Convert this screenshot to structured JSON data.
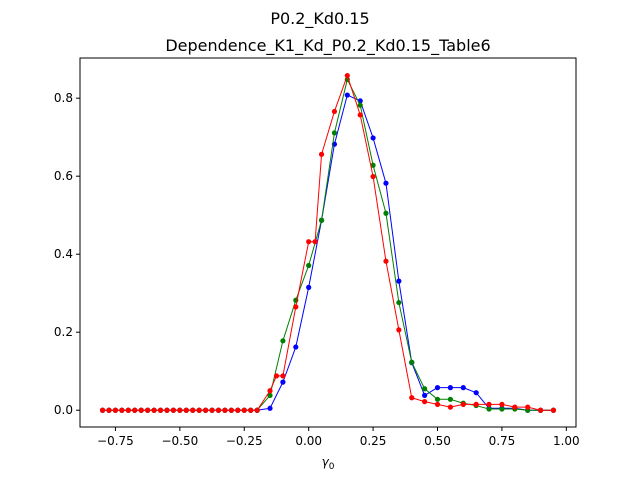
{
  "figure": {
    "suptitle": "P0.2_Kd0.15"
  },
  "chart_data": {
    "type": "line",
    "title": "Dependence_K1_Kd_P0.2_Kd0.15_Table6",
    "xlabel": "γ",
    "xlabel_subscript": "0",
    "ylabel": "",
    "xlim": [
      -0.8875,
      1.0375
    ],
    "ylim": [
      -0.043,
      0.903
    ],
    "x_ticks": [
      -0.75,
      -0.5,
      -0.25,
      0.0,
      0.25,
      0.5,
      0.75,
      1.0
    ],
    "x_tick_labels": [
      "−0.75",
      "−0.50",
      "−0.25",
      "0.00",
      "0.25",
      "0.50",
      "0.75",
      "1.00"
    ],
    "y_ticks": [
      0.0,
      0.2,
      0.4,
      0.6,
      0.8
    ],
    "y_tick_labels": [
      "0.0",
      "0.2",
      "0.4",
      "0.6",
      "0.8"
    ],
    "grid": false,
    "x": [
      -0.8,
      -0.775,
      -0.75,
      -0.725,
      -0.7,
      -0.675,
      -0.65,
      -0.625,
      -0.6,
      -0.575,
      -0.55,
      -0.525,
      -0.5,
      -0.475,
      -0.45,
      -0.425,
      -0.4,
      -0.375,
      -0.35,
      -0.325,
      -0.3,
      -0.275,
      -0.25,
      -0.225,
      -0.2,
      -0.175,
      -0.15,
      -0.125,
      -0.1,
      -0.075,
      -0.05,
      -0.025,
      0.0,
      0.025,
      0.05,
      0.075,
      0.1,
      0.125,
      0.15,
      0.175,
      0.2,
      0.225,
      0.25,
      0.275,
      0.3,
      0.325,
      0.35,
      0.375,
      0.4,
      0.425,
      0.45,
      0.475,
      0.5,
      0.525,
      0.55,
      0.575,
      0.6,
      0.625,
      0.65,
      0.675,
      0.7,
      0.725,
      0.75,
      0.775,
      0.8,
      0.825,
      0.85,
      0.875,
      0.9,
      0.925,
      0.95
    ],
    "series": [
      {
        "color": "#0000ff",
        "x": [
          -0.8,
          -0.775,
          -0.75,
          -0.725,
          -0.7,
          -0.675,
          -0.65,
          -0.625,
          -0.6,
          -0.575,
          -0.55,
          -0.525,
          -0.5,
          -0.475,
          -0.45,
          -0.425,
          -0.4,
          -0.375,
          -0.35,
          -0.325,
          -0.3,
          -0.275,
          -0.25,
          -0.225,
          -0.2,
          -0.15,
          -0.1,
          -0.05,
          0.0,
          0.05,
          0.1,
          0.15,
          0.2,
          0.25,
          0.3,
          0.35,
          0.4,
          0.45,
          0.5,
          0.55,
          0.6,
          0.65,
          0.7,
          0.75,
          0.8,
          0.85,
          0.9,
          0.95
        ],
        "values": [
          0,
          0,
          0,
          0,
          0,
          0,
          0,
          0,
          0,
          0,
          0,
          0,
          0,
          0,
          0,
          0,
          0,
          0,
          0,
          0,
          0,
          0,
          0,
          0,
          0,
          0.005,
          0.072,
          0.162,
          0.315,
          0.487,
          0.682,
          0.808,
          0.793,
          0.698,
          0.582,
          0.331,
          0.122,
          0.038,
          0.058,
          0.058,
          0.058,
          0.045,
          0.005,
          0.005,
          0.005,
          0.0,
          0.0,
          0.0
        ]
      },
      {
        "color": "#008000",
        "x": [
          -0.8,
          -0.775,
          -0.75,
          -0.725,
          -0.7,
          -0.675,
          -0.65,
          -0.625,
          -0.6,
          -0.575,
          -0.55,
          -0.525,
          -0.5,
          -0.475,
          -0.45,
          -0.425,
          -0.4,
          -0.375,
          -0.35,
          -0.325,
          -0.3,
          -0.275,
          -0.25,
          -0.225,
          -0.2,
          -0.15,
          -0.1,
          -0.05,
          0.0,
          0.05,
          0.1,
          0.15,
          0.2,
          0.25,
          0.3,
          0.35,
          0.4,
          0.45,
          0.5,
          0.55,
          0.6,
          0.65,
          0.7,
          0.75,
          0.8,
          0.85,
          0.9,
          0.95
        ],
        "values": [
          0,
          0,
          0,
          0,
          0,
          0,
          0,
          0,
          0,
          0,
          0,
          0,
          0,
          0,
          0,
          0,
          0,
          0,
          0,
          0,
          0,
          0,
          0,
          0,
          0,
          0.038,
          0.178,
          0.282,
          0.371,
          0.487,
          0.711,
          0.848,
          0.782,
          0.628,
          0.505,
          0.276,
          0.123,
          0.055,
          0.028,
          0.028,
          0.018,
          0.012,
          0.003,
          0.003,
          0.003,
          0.0,
          0.0,
          0.0
        ]
      },
      {
        "color": "#ff0000",
        "x": [
          -0.8,
          -0.775,
          -0.75,
          -0.725,
          -0.7,
          -0.675,
          -0.65,
          -0.625,
          -0.6,
          -0.575,
          -0.55,
          -0.525,
          -0.5,
          -0.475,
          -0.45,
          -0.425,
          -0.4,
          -0.375,
          -0.35,
          -0.325,
          -0.3,
          -0.275,
          -0.25,
          -0.225,
          -0.2,
          -0.15,
          -0.125,
          -0.1,
          -0.05,
          0.0,
          0.025,
          0.05,
          0.1,
          0.15,
          0.2,
          0.25,
          0.3,
          0.35,
          0.4,
          0.45,
          0.5,
          0.55,
          0.6,
          0.65,
          0.7,
          0.75,
          0.8,
          0.85,
          0.9,
          0.95
        ],
        "values": [
          0,
          0,
          0,
          0,
          0,
          0,
          0,
          0,
          0,
          0,
          0,
          0,
          0,
          0,
          0,
          0,
          0,
          0,
          0,
          0,
          0,
          0,
          0,
          0,
          0,
          0.05,
          0.088,
          0.088,
          0.265,
          0.432,
          0.432,
          0.656,
          0.766,
          0.858,
          0.757,
          0.599,
          0.382,
          0.206,
          0.032,
          0.022,
          0.015,
          0.008,
          0.015,
          0.015,
          0.015,
          0.015,
          0.008,
          0.008,
          0.0,
          0.0
        ]
      }
    ]
  }
}
